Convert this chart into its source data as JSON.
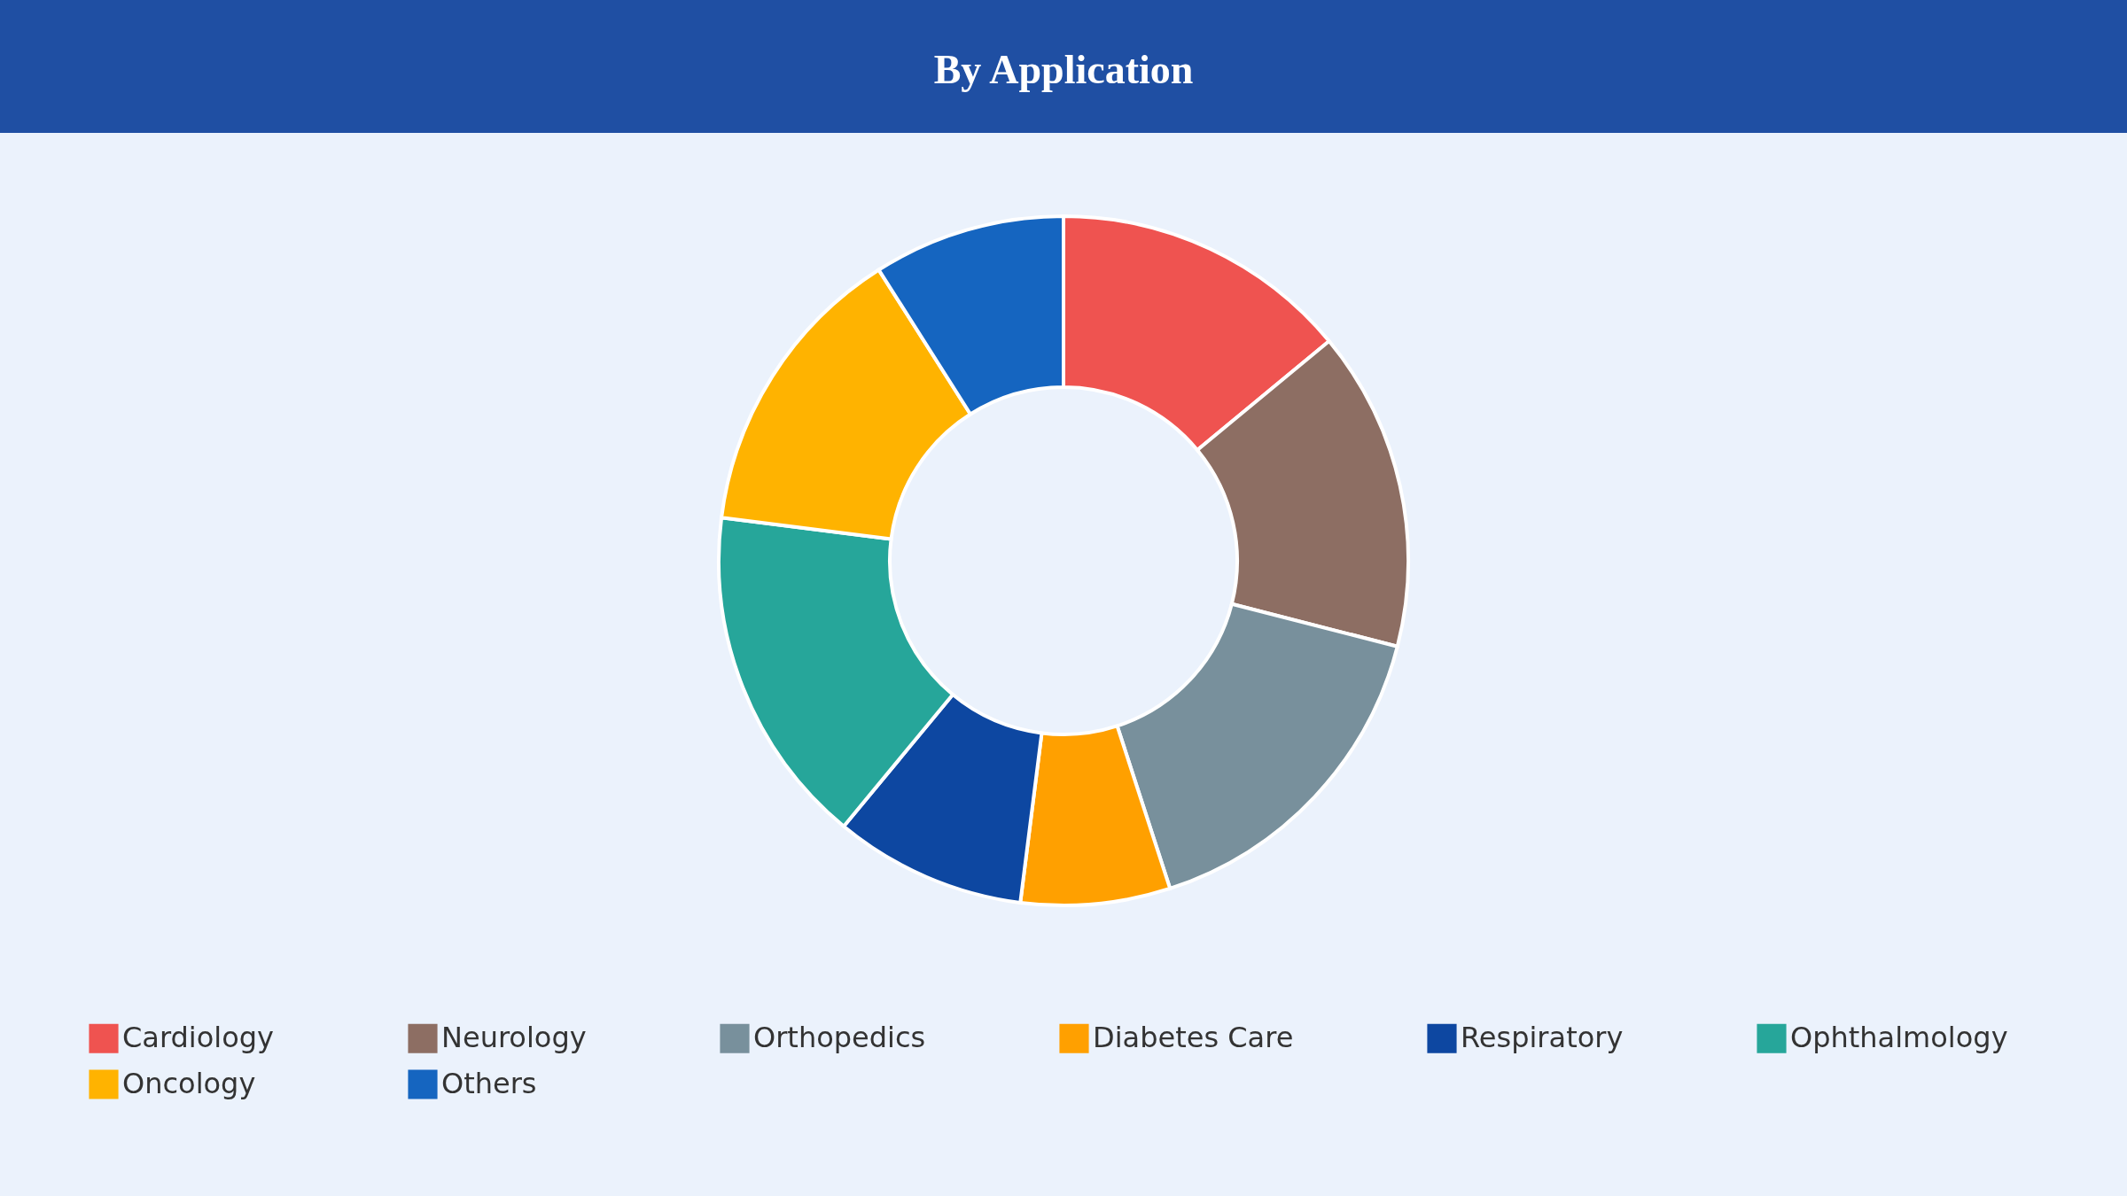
{
  "chart_data": {
    "type": "donut",
    "title": "By Application",
    "categories": [
      "Cardiology",
      "Neurology",
      "Orthopedics",
      "Diabetes Care",
      "Respiratory",
      "Ophthalmology",
      "Oncology",
      "Others"
    ],
    "values": [
      14,
      15,
      16,
      7,
      9,
      16,
      14,
      9
    ],
    "colors": [
      "#ef5350",
      "#8d6e63",
      "#78909c",
      "#ffa000",
      "#0d47a1",
      "#26a69a",
      "#ffb300",
      "#1565c0"
    ],
    "legend": "bottom"
  }
}
